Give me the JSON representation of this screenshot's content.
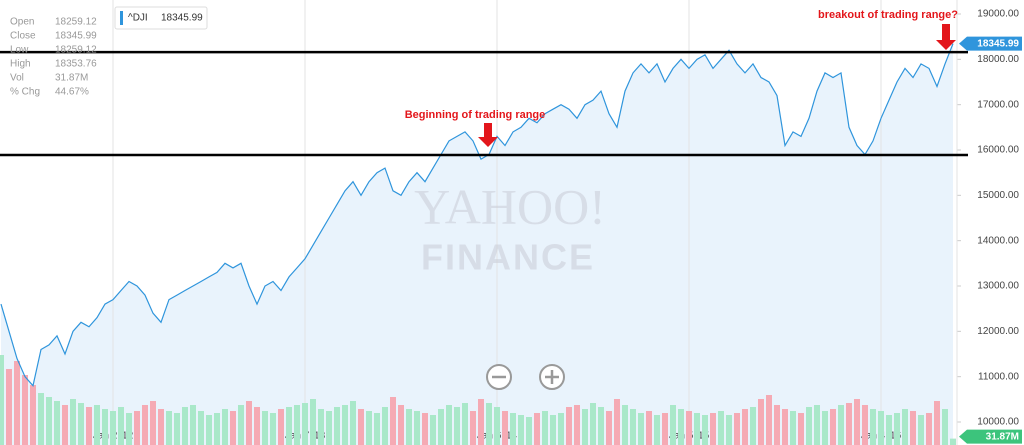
{
  "chart_data": {
    "type": "line",
    "legend": {
      "symbol": "^DJI"
    },
    "info": [
      {
        "label": "Open",
        "value": "18259.12"
      },
      {
        "label": "Close",
        "value": "18345.99"
      },
      {
        "label": "Low",
        "value": "18259.12"
      },
      {
        "label": "High",
        "value": "18353.76"
      },
      {
        "label": "Vol",
        "value": "31.87M"
      },
      {
        "label": "% Chg",
        "value": "44.67%"
      }
    ],
    "watermark": [
      "YAHOO!",
      "FINANCE"
    ],
    "annotations": [
      "Beginning of trading range",
      "breakout of trading range?"
    ],
    "reference_lines": [
      18160,
      15890
    ],
    "reference_color": "#000000",
    "annotation_color": "#e3161b",
    "categories": [
      null,
      null,
      null,
      null,
      null,
      null,
      null,
      null,
      null,
      null,
      null,
      null,
      null,
      null,
      "Jan 2 '12",
      null,
      null,
      null,
      null,
      null,
      null,
      null,
      null,
      null,
      null,
      null,
      null,
      null,
      null,
      null,
      null,
      null,
      null,
      null,
      null,
      null,
      null,
      null,
      "Jan 7 '13",
      null,
      null,
      null,
      null,
      null,
      null,
      null,
      null,
      null,
      null,
      null,
      null,
      null,
      null,
      null,
      null,
      null,
      null,
      null,
      null,
      null,
      null,
      null,
      "Jan 6 '14",
      null,
      null,
      null,
      null,
      null,
      null,
      null,
      null,
      null,
      null,
      null,
      null,
      null,
      null,
      null,
      null,
      null,
      null,
      null,
      null,
      null,
      null,
      null,
      "Jan 5 '15",
      null,
      null,
      null,
      null,
      null,
      null,
      null,
      null,
      null,
      null,
      null,
      null,
      null,
      null,
      null,
      null,
      null,
      null,
      null,
      null,
      null,
      null,
      null,
      "Jan 4 '16",
      null,
      null,
      null,
      null,
      null,
      null,
      null,
      null,
      null
    ],
    "series": [
      {
        "name": "^DJI",
        "color": "#2f95dc",
        "fill": "#e9f3fc",
        "values": [
          12600,
          12000,
          11400,
          11000,
          10800,
          11600,
          11700,
          11900,
          11500,
          12000,
          12200,
          12100,
          12300,
          12600,
          12700,
          12900,
          13100,
          13000,
          12800,
          12400,
          12200,
          12700,
          12800,
          12900,
          13000,
          13100,
          13200,
          13300,
          13500,
          13400,
          13500,
          13000,
          12600,
          13000,
          13100,
          12900,
          13200,
          13400,
          13600,
          13900,
          14200,
          14500,
          14800,
          15100,
          15300,
          15000,
          15300,
          15500,
          15600,
          15100,
          15000,
          15300,
          15500,
          15300,
          15600,
          15900,
          16200,
          16300,
          16400,
          16200,
          15800,
          15900,
          16300,
          16100,
          16400,
          16500,
          16700,
          16600,
          16800,
          16900,
          17000,
          16900,
          16700,
          17000,
          17100,
          17300,
          16800,
          16500,
          17300,
          17700,
          17900,
          17700,
          17900,
          17500,
          17800,
          18000,
          17800,
          18000,
          18100,
          17800,
          18000,
          18200,
          17900,
          17700,
          17900,
          17600,
          17500,
          17200,
          16100,
          16400,
          16300,
          16700,
          17300,
          17700,
          17600,
          17700,
          16500,
          16100,
          15900,
          16200,
          16700,
          17100,
          17500,
          17800,
          17600,
          17900,
          17800,
          17400,
          17900,
          18345.99
        ]
      },
      {
        "name": "Vol",
        "up_color": "#a9e8c9",
        "down_color": "#f5aab4",
        "tag_color": "#3cc47c",
        "values": [
          450,
          380,
          420,
          350,
          300,
          260,
          240,
          220,
          200,
          230,
          210,
          190,
          200,
          180,
          170,
          190,
          160,
          170,
          200,
          220,
          180,
          170,
          160,
          190,
          200,
          170,
          150,
          160,
          180,
          170,
          200,
          220,
          190,
          170,
          160,
          180,
          190,
          200,
          210,
          230,
          180,
          170,
          190,
          200,
          220,
          180,
          170,
          160,
          190,
          240,
          200,
          180,
          170,
          160,
          150,
          180,
          200,
          190,
          210,
          170,
          230,
          210,
          190,
          170,
          160,
          150,
          140,
          160,
          170,
          150,
          160,
          190,
          200,
          180,
          210,
          190,
          170,
          230,
          200,
          180,
          160,
          170,
          150,
          160,
          200,
          180,
          170,
          160,
          150,
          160,
          170,
          150,
          160,
          180,
          190,
          230,
          250,
          200,
          180,
          170,
          160,
          190,
          200,
          170,
          180,
          200,
          210,
          230,
          200,
          180,
          170,
          150,
          160,
          180,
          170,
          150,
          160,
          220,
          180,
          31.87
        ]
      }
    ],
    "ylim": [
      10000,
      19000
    ],
    "yticks": [
      {
        "value": 10000,
        "label": "10000.00"
      },
      {
        "value": 11000,
        "label": "11000.00"
      },
      {
        "value": 12000,
        "label": "12000.00"
      },
      {
        "value": 13000,
        "label": "13000.00"
      },
      {
        "value": 14000,
        "label": "14000.00"
      },
      {
        "value": 15000,
        "label": "15000.00"
      },
      {
        "value": 16000,
        "label": "16000.00"
      },
      {
        "value": 17000,
        "label": "17000.00"
      },
      {
        "value": 18000,
        "label": "18000.00"
      },
      {
        "value": 19000,
        "label": "19000.00"
      }
    ],
    "volume_lim": [
      0,
      500
    ],
    "grid": true
  }
}
